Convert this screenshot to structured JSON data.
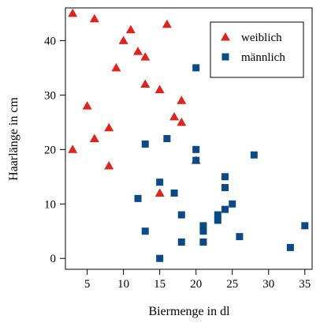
{
  "chart_data": {
    "type": "scatter",
    "title": "",
    "xlabel": "Biermenge in dl",
    "ylabel": "Haarlänge in cm",
    "xlim": [
      2,
      36
    ],
    "ylim": [
      -2,
      46
    ],
    "xticks": [
      5,
      10,
      15,
      20,
      25,
      30,
      35
    ],
    "yticks": [
      0,
      10,
      20,
      30,
      40
    ],
    "grid": false,
    "legend_position": "top-right",
    "series": [
      {
        "name": "weiblich",
        "marker": "triangle",
        "color": "#e0231b",
        "points": [
          [
            3,
            45
          ],
          [
            6,
            44
          ],
          [
            11,
            42
          ],
          [
            16,
            43
          ],
          [
            10,
            40
          ],
          [
            12,
            38
          ],
          [
            13,
            37
          ],
          [
            9,
            35
          ],
          [
            13,
            32
          ],
          [
            15,
            31
          ],
          [
            18,
            29
          ],
          [
            5,
            28
          ],
          [
            17,
            26
          ],
          [
            18,
            25
          ],
          [
            8,
            24
          ],
          [
            6,
            22
          ],
          [
            3,
            20
          ],
          [
            8,
            17
          ],
          [
            20,
            18
          ],
          [
            15,
            12
          ]
        ]
      },
      {
        "name": "männlich",
        "marker": "square",
        "color": "#0a4a86",
        "points": [
          [
            20,
            35
          ],
          [
            16,
            22
          ],
          [
            13,
            21
          ],
          [
            20,
            20
          ],
          [
            28,
            19
          ],
          [
            20,
            18
          ],
          [
            24,
            15
          ],
          [
            15,
            14
          ],
          [
            24,
            13
          ],
          [
            17,
            12
          ],
          [
            12,
            11
          ],
          [
            25,
            10
          ],
          [
            24,
            9
          ],
          [
            18,
            8
          ],
          [
            23,
            8
          ],
          [
            23,
            7
          ],
          [
            21,
            6
          ],
          [
            35,
            6
          ],
          [
            21,
            5
          ],
          [
            13,
            5
          ],
          [
            26,
            4
          ],
          [
            18,
            3
          ],
          [
            21,
            3
          ],
          [
            33,
            2
          ],
          [
            15,
            0
          ]
        ]
      }
    ]
  }
}
